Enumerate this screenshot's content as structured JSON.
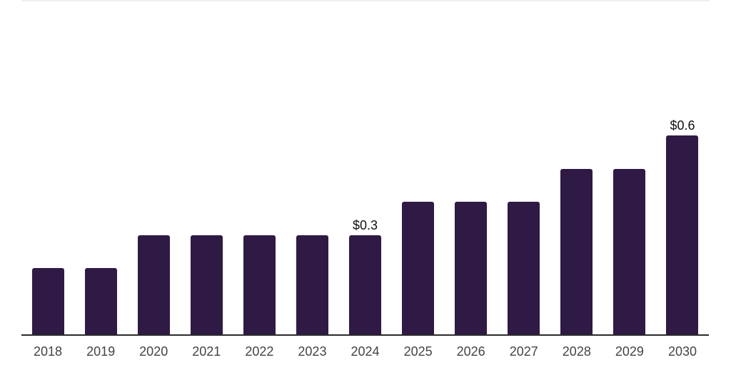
{
  "chart": {
    "bar_color": "#2e1a45",
    "axis_color": "#2b2b2b",
    "data_label_color": "#111111",
    "tick_label_color": "#444444",
    "top_border_color": "#eef0f2",
    "background_color": "#ffffff"
  },
  "chart_data": {
    "type": "bar",
    "categories": [
      "2018",
      "2019",
      "2020",
      "2021",
      "2022",
      "2023",
      "2024",
      "2025",
      "2026",
      "2027",
      "2028",
      "2029",
      "2030"
    ],
    "values": [
      0.2,
      0.2,
      0.3,
      0.3,
      0.3,
      0.3,
      0.3,
      0.4,
      0.4,
      0.4,
      0.5,
      0.5,
      0.6
    ],
    "data_labels": [
      "",
      "",
      "",
      "",
      "",
      "",
      "$0.3",
      "",
      "",
      "",
      "",
      "",
      "$0.6"
    ],
    "title": "",
    "xlabel": "",
    "ylabel": "",
    "ylim": [
      0,
      1.0
    ],
    "grid": false,
    "legend": null,
    "x_axis_line": true,
    "y_axis_line": false
  }
}
